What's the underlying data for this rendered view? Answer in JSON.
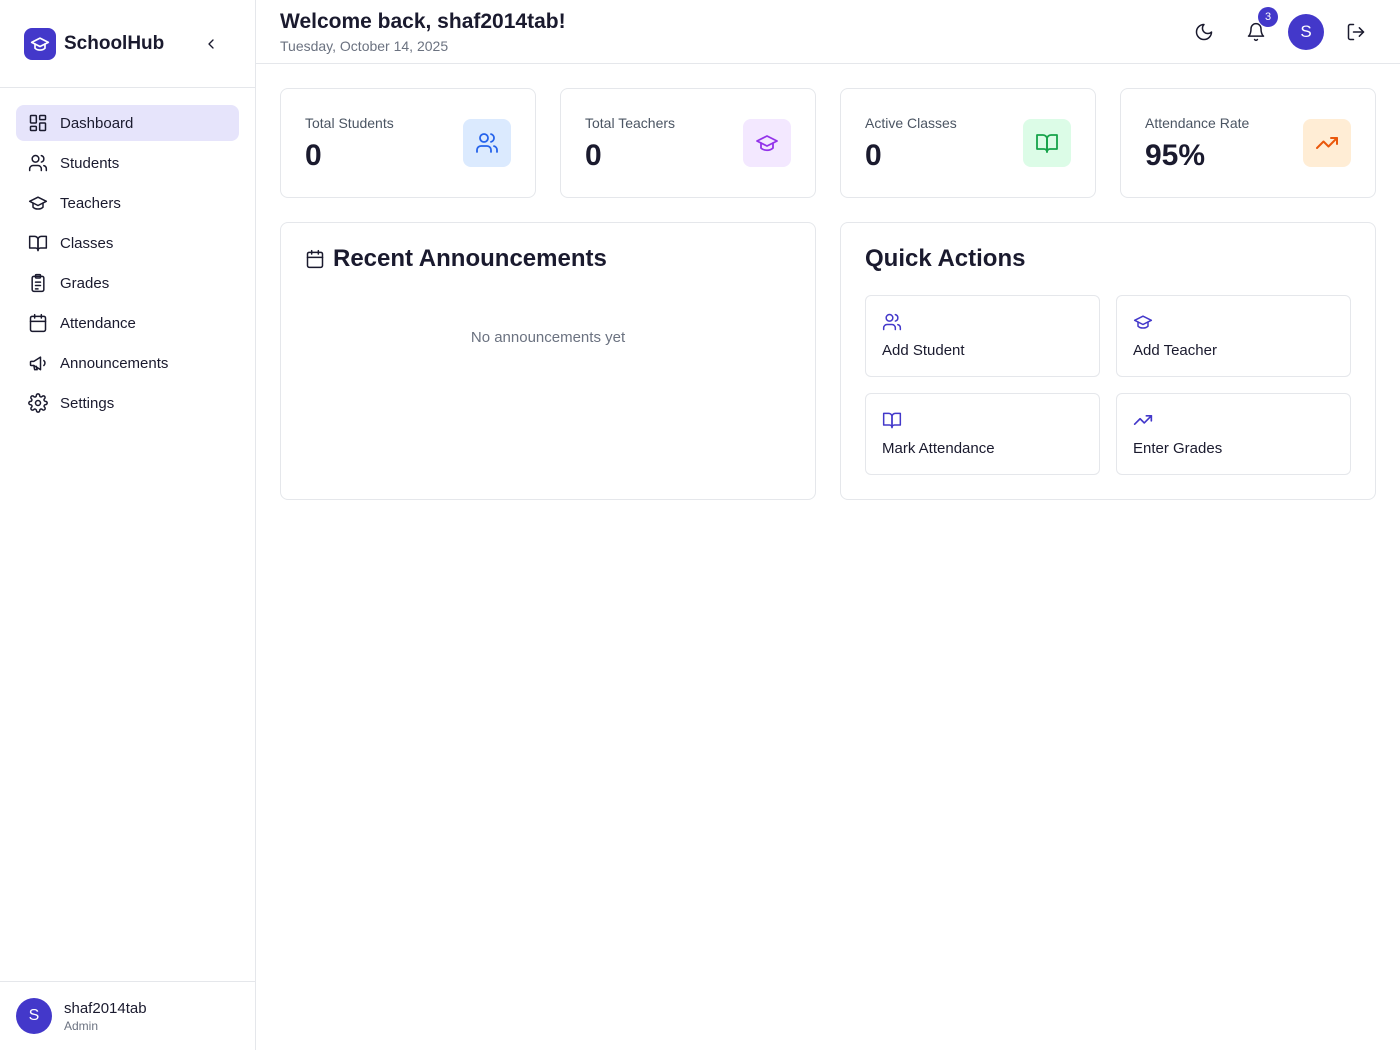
{
  "app": {
    "name": "SchoolHub"
  },
  "sidebar": {
    "items": [
      {
        "label": "Dashboard",
        "icon": "dashboard-icon",
        "active": true
      },
      {
        "label": "Students",
        "icon": "users-icon"
      },
      {
        "label": "Teachers",
        "icon": "graduation-cap-icon"
      },
      {
        "label": "Classes",
        "icon": "book-open-icon"
      },
      {
        "label": "Grades",
        "icon": "clipboard-icon"
      },
      {
        "label": "Attendance",
        "icon": "calendar-icon"
      },
      {
        "label": "Announcements",
        "icon": "megaphone-icon"
      },
      {
        "label": "Settings",
        "icon": "gear-icon"
      }
    ],
    "user": {
      "initial": "S",
      "name": "shaf2014tab",
      "role": "Admin"
    }
  },
  "header": {
    "welcome": "Welcome back, shaf2014tab!",
    "date": "Tuesday, October 14, 2025",
    "notification_count": "3",
    "avatar_initial": "S"
  },
  "stats": [
    {
      "label": "Total Students",
      "value": "0",
      "icon": "users-icon",
      "color": "#2563eb",
      "bg": "#dbeafe"
    },
    {
      "label": "Total Teachers",
      "value": "0",
      "icon": "graduation-cap-icon",
      "color": "#9333ea",
      "bg": "#f3e8ff"
    },
    {
      "label": "Active Classes",
      "value": "0",
      "icon": "book-open-icon",
      "color": "#16a34a",
      "bg": "#dcfce7"
    },
    {
      "label": "Attendance Rate",
      "value": "95%",
      "icon": "trending-up-icon",
      "color": "#ea580c",
      "bg": "#ffedd5"
    }
  ],
  "announcements": {
    "title": "Recent Announcements",
    "empty_text": "No announcements yet"
  },
  "quick_actions": {
    "title": "Quick Actions",
    "items": [
      {
        "label": "Add Student",
        "icon": "users-icon"
      },
      {
        "label": "Add Teacher",
        "icon": "graduation-cap-icon"
      },
      {
        "label": "Mark Attendance",
        "icon": "book-open-icon"
      },
      {
        "label": "Enter Grades",
        "icon": "trending-up-icon"
      }
    ]
  },
  "colors": {
    "accent": "#4338ca",
    "active_nav_bg": "#e6e4fb",
    "border": "#e5e7eb"
  }
}
